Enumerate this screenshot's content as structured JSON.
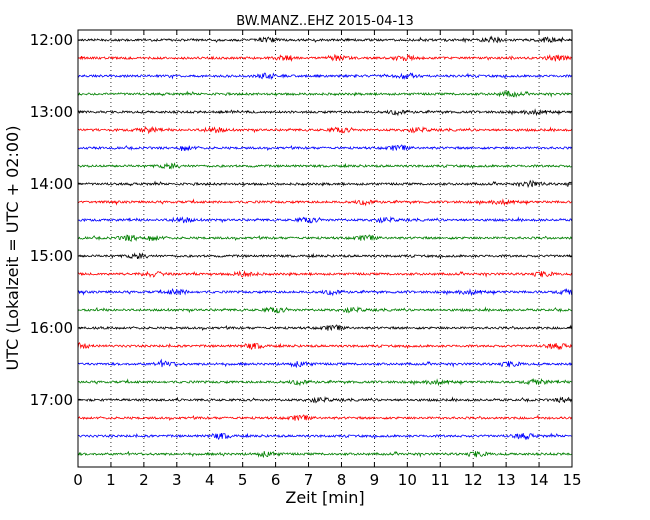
{
  "chart_data": {
    "type": "line",
    "title": "BW.MANZ..EHZ 2015-04-13",
    "xlabel": "Zeit  [min]",
    "ylabel": "UTC (Lokalzeit = UTC + 02:00)",
    "xlim": [
      0,
      15
    ],
    "x_ticks": [
      "0",
      "1",
      "2",
      "3",
      "4",
      "5",
      "6",
      "7",
      "8",
      "9",
      "10",
      "11",
      "12",
      "13",
      "14",
      "15"
    ],
    "y_ticks": [
      "12:00",
      "13:00",
      "14:00",
      "15:00",
      "16:00",
      "17:00"
    ],
    "grid": "vertical dotted",
    "trace_colors": [
      "#000000",
      "#ff0000",
      "#0000ff",
      "#008000"
    ],
    "traces": [
      {
        "start": "12:00",
        "color": "#000000"
      },
      {
        "start": "12:15",
        "color": "#ff0000"
      },
      {
        "start": "12:30",
        "color": "#0000ff"
      },
      {
        "start": "12:45",
        "color": "#008000"
      },
      {
        "start": "13:00",
        "color": "#000000"
      },
      {
        "start": "13:15",
        "color": "#ff0000"
      },
      {
        "start": "13:30",
        "color": "#0000ff"
      },
      {
        "start": "13:45",
        "color": "#008000"
      },
      {
        "start": "14:00",
        "color": "#000000"
      },
      {
        "start": "14:15",
        "color": "#ff0000"
      },
      {
        "start": "14:30",
        "color": "#0000ff"
      },
      {
        "start": "14:45",
        "color": "#008000"
      },
      {
        "start": "15:00",
        "color": "#000000"
      },
      {
        "start": "15:15",
        "color": "#ff0000"
      },
      {
        "start": "15:30",
        "color": "#0000ff"
      },
      {
        "start": "15:45",
        "color": "#008000"
      },
      {
        "start": "16:00",
        "color": "#000000"
      },
      {
        "start": "16:15",
        "color": "#ff0000"
      },
      {
        "start": "16:30",
        "color": "#0000ff"
      },
      {
        "start": "16:45",
        "color": "#008000"
      },
      {
        "start": "17:00",
        "color": "#000000"
      },
      {
        "start": "17:15",
        "color": "#ff0000"
      },
      {
        "start": "17:30",
        "color": "#0000ff"
      },
      {
        "start": "17:45",
        "color": "#008000"
      }
    ]
  }
}
